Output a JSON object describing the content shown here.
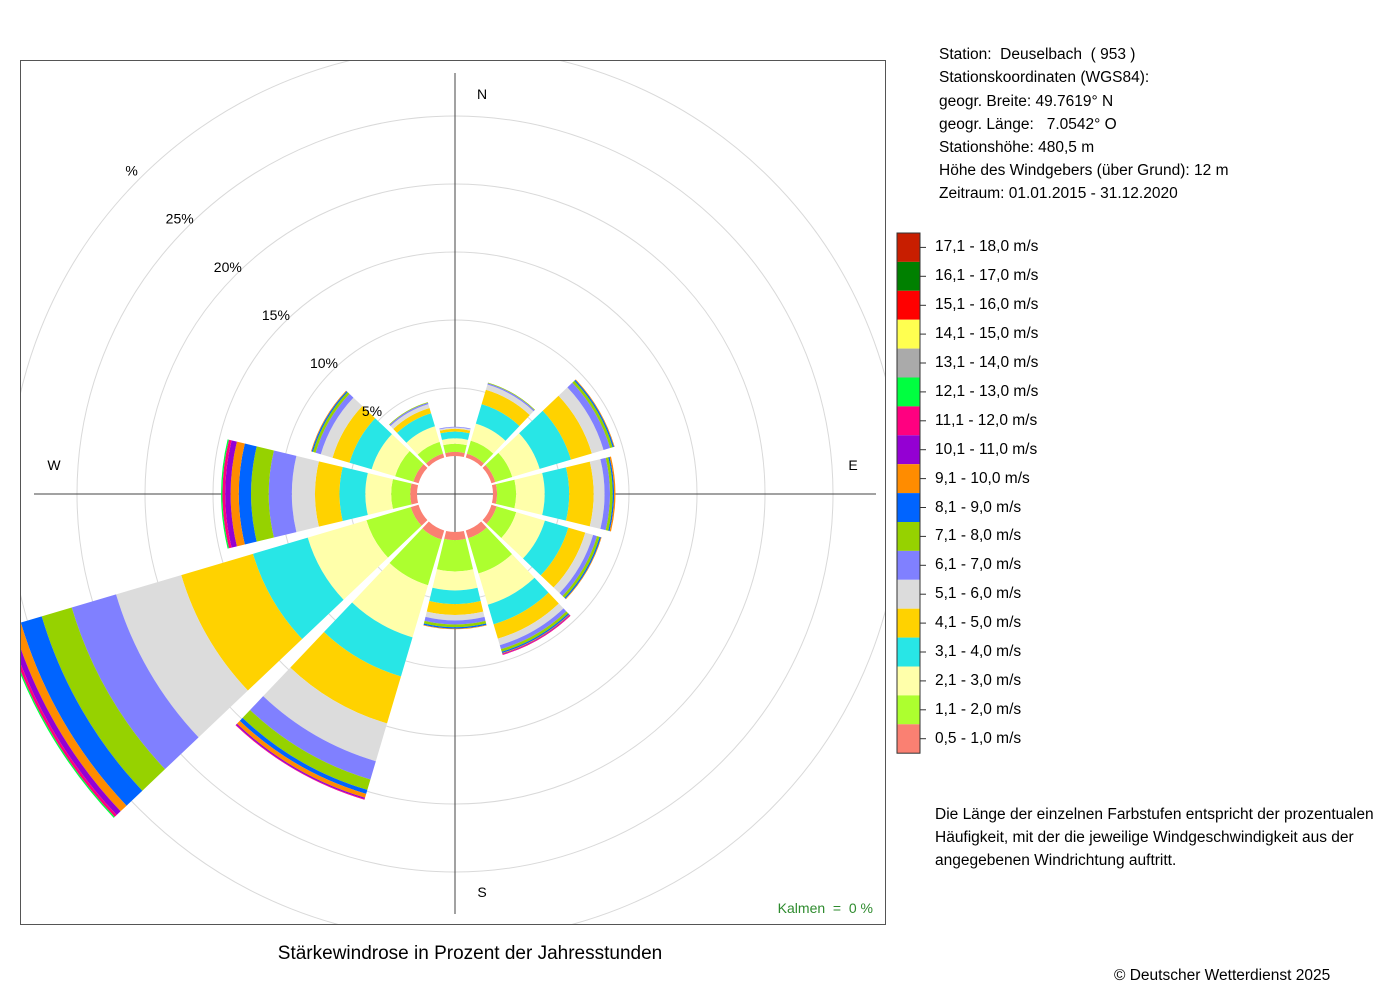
{
  "station": {
    "line_station": "Station:  Deuselbach  ( 953 )",
    "line_coords_title": "Stationskoordinaten (WGS84):",
    "line_lat": "geogr. Breite: 49.7619° N",
    "line_lon": "geogr. Länge:   7.0542° O",
    "line_height": "Stationshöhe: 480,5 m",
    "line_sensor": "Höhe des Windgebers (über Grund): 12 m",
    "line_period": "Zeitraum: 01.01.2015 - 31.12.2020"
  },
  "note": {
    "line1": "Die Länge der einzelnen Farbstufen entspricht der prozentualen",
    "line2": "Häufigkeit, mit der die jeweilige Windgeschwindigkeit aus der",
    "line3": "angegebenen Windrichtung auftritt."
  },
  "caption": "Stärkewindrose in Prozent der Jahresstunden",
  "copyright": "© Deutscher Wetterdienst  2025",
  "calm_label": "Kalmen  =  0 %",
  "chart_data": {
    "type": "windrose",
    "title": "Stärkewindrose in Prozent der Jahresstunden",
    "unit": "%",
    "compass_labels": [
      "N",
      "E",
      "S",
      "W"
    ],
    "ring_values": [
      5,
      10,
      15,
      20,
      25,
      30
    ],
    "ring_labels": [
      "5%",
      "10%",
      "15%",
      "20%",
      "25%",
      "%"
    ],
    "sectors_deg": [
      0,
      30,
      60,
      90,
      120,
      150,
      180,
      210,
      240,
      270,
      300,
      330
    ],
    "classes": [
      {
        "label": "0,5 - 1,0 m/s",
        "color": "#FA8072"
      },
      {
        "label": "1,1 - 2,0 m/s",
        "color": "#ADFF2F"
      },
      {
        "label": "2,1 - 3,0 m/s",
        "color": "#FFFFAA"
      },
      {
        "label": "3,1 - 4,0 m/s",
        "color": "#28E6E6"
      },
      {
        "label": "4,1 - 5,0 m/s",
        "color": "#FFD200"
      },
      {
        "label": "5,1 - 6,0 m/s",
        "color": "#DCDCDC"
      },
      {
        "label": "6,1 - 7,0 m/s",
        "color": "#8080FF"
      },
      {
        "label": "7,1 - 8,0 m/s",
        "color": "#96D200"
      },
      {
        "label": "8,1 - 9,0 m/s",
        "color": "#0064FF"
      },
      {
        "label": "9,1 - 10,0 m/s",
        "color": "#FF8C00"
      },
      {
        "label": "10,1 - 11,0 m/s",
        "color": "#9400D3"
      },
      {
        "label": "11,1 - 12,0 m/s",
        "color": "#FF0080"
      },
      {
        "label": "12,1 - 13,0 m/s",
        "color": "#00FF40"
      },
      {
        "label": "13,1 - 14,0 m/s",
        "color": "#AAAAAA"
      },
      {
        "label": "14,1 - 15,0 m/s",
        "color": "#FFFF50"
      },
      {
        "label": "15,1 - 16,0 m/s",
        "color": "#FF0000"
      },
      {
        "label": "16,1 - 17,0 m/s",
        "color": "#008000"
      },
      {
        "label": "17,1 - 18,0 m/s",
        "color": "#C81E00"
      }
    ],
    "series": [
      {
        "direction": 0,
        "values": [
          0.3,
          0.6,
          0.4,
          0.5,
          0.2,
          0.1,
          0.05,
          0,
          0,
          0,
          0,
          0,
          0,
          0,
          0,
          0,
          0,
          0
        ]
      },
      {
        "direction": 30,
        "values": [
          0.3,
          1.0,
          1.3,
          1.5,
          1.1,
          0.4,
          0.1,
          0.05,
          0,
          0,
          0,
          0,
          0,
          0,
          0,
          0,
          0,
          0
        ]
      },
      {
        "direction": 60,
        "values": [
          0.3,
          1.3,
          2.1,
          2.4,
          1.6,
          0.9,
          0.5,
          0.2,
          0.1,
          0.05,
          0,
          0,
          0,
          0,
          0,
          0,
          0,
          0
        ]
      },
      {
        "direction": 90,
        "values": [
          0.3,
          1.4,
          2.1,
          1.8,
          1.8,
          0.8,
          0.4,
          0.2,
          0.1,
          0.1,
          0,
          0,
          0,
          0,
          0,
          0,
          0,
          0
        ]
      },
      {
        "direction": 120,
        "values": [
          0.4,
          1.5,
          2.2,
          1.8,
          1.3,
          0.6,
          0.3,
          0.2,
          0.1,
          0.05,
          0,
          0,
          0,
          0,
          0,
          0,
          0,
          0
        ]
      },
      {
        "direction": 150,
        "values": [
          0.6,
          2.7,
          2.4,
          1.5,
          1.1,
          0.5,
          0.3,
          0.2,
          0.1,
          0.05,
          0.05,
          0.05,
          0,
          0,
          0,
          0,
          0,
          0
        ]
      },
      {
        "direction": 180,
        "values": [
          0.6,
          2.3,
          1.4,
          1.0,
          0.8,
          0.4,
          0.3,
          0.2,
          0.1,
          0.05,
          0,
          0,
          0,
          0,
          0,
          0,
          0,
          0
        ]
      },
      {
        "direction": 210,
        "values": [
          0.7,
          3.5,
          4.0,
          3.0,
          3.6,
          2.9,
          1.4,
          0.8,
          0.3,
          0.3,
          0.1,
          0.05,
          0,
          0,
          0,
          0,
          0,
          0
        ]
      },
      {
        "direction": 240,
        "values": [
          0.6,
          3.4,
          4.5,
          4.2,
          5.5,
          5.0,
          3.4,
          2.3,
          1.6,
          0.6,
          0.4,
          0.2,
          0.1,
          0,
          0,
          0,
          0,
          0
        ]
      },
      {
        "direction": 270,
        "values": [
          0.5,
          1.4,
          1.9,
          1.9,
          1.8,
          1.7,
          1.7,
          1.3,
          0.9,
          0.6,
          0.4,
          0.2,
          0.1,
          0,
          0,
          0,
          0,
          0
        ]
      },
      {
        "direction": 300,
        "values": [
          0.4,
          1.4,
          1.8,
          1.7,
          1.3,
          0.9,
          0.4,
          0.2,
          0.1,
          0.05,
          0,
          0,
          0,
          0,
          0,
          0,
          0,
          0
        ]
      },
      {
        "direction": 330,
        "values": [
          0.3,
          0.9,
          1.2,
          1.0,
          0.4,
          0.3,
          0.1,
          0.05,
          0,
          0,
          0,
          0,
          0,
          0,
          0,
          0,
          0,
          0
        ]
      }
    ]
  }
}
